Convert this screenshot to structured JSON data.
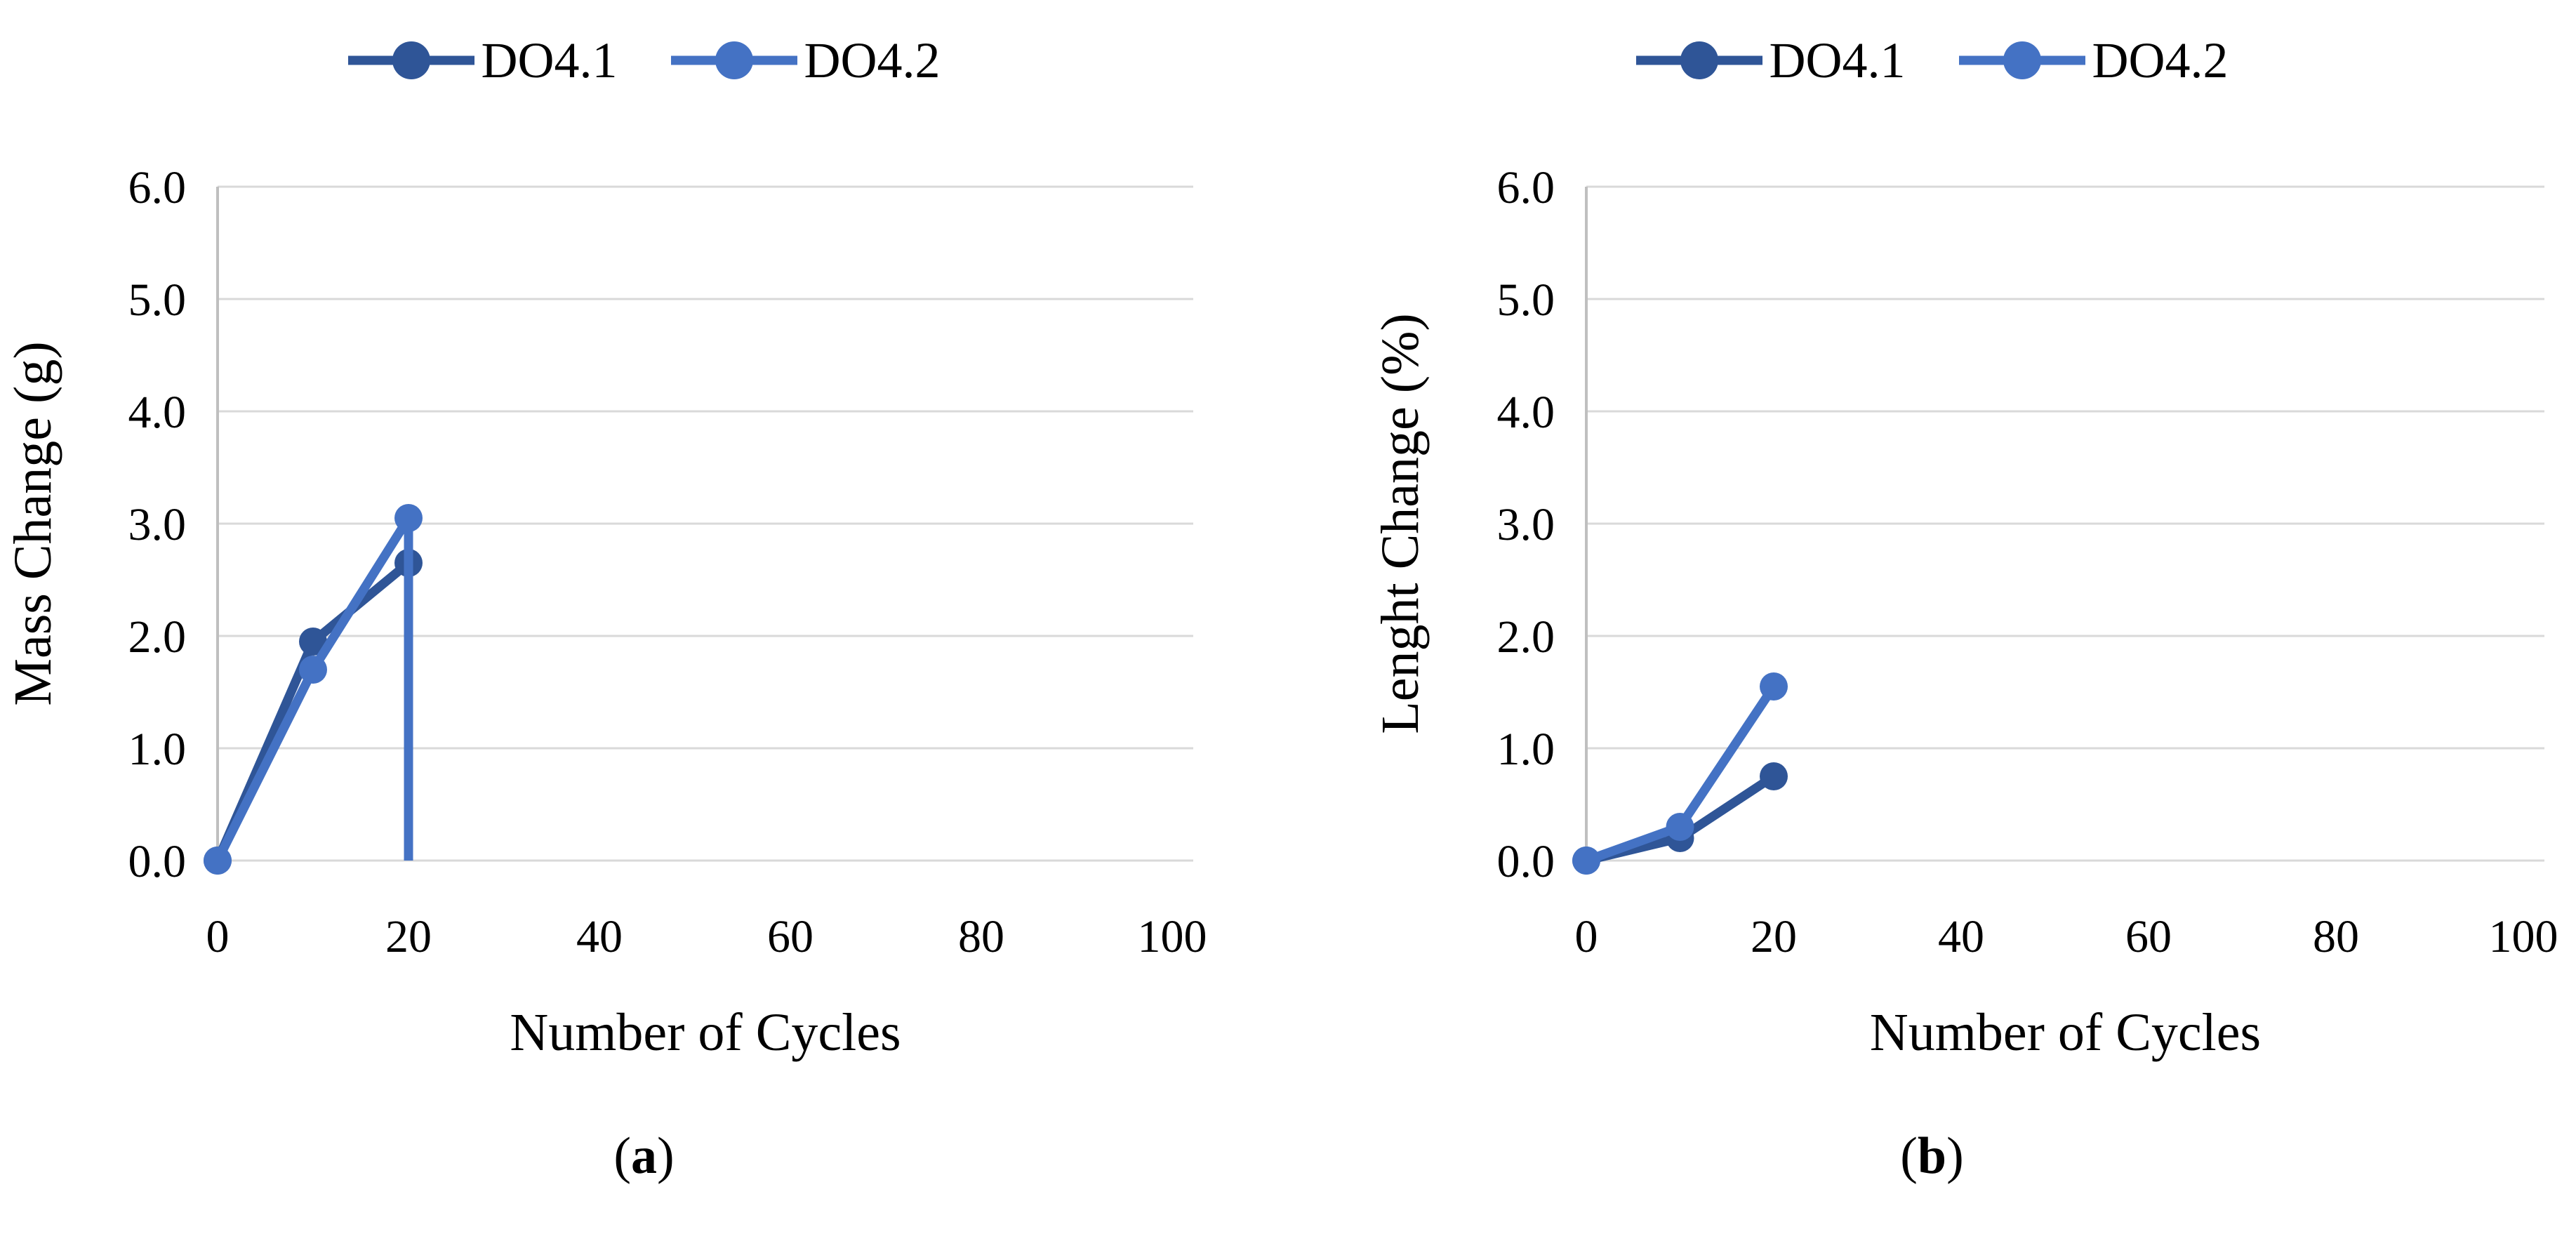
{
  "meta": {
    "background": "#ffffff",
    "gridline_color": "#D9D9D9",
    "axis_line_color": "#BFBFBF",
    "text_color": "#000000"
  },
  "captions": [
    {
      "prefix": "(",
      "letter": "a",
      "suffix": ")"
    },
    {
      "prefix": "(",
      "letter": "b",
      "suffix": ")"
    }
  ],
  "chart_data": [
    {
      "type": "line",
      "title": "",
      "xlabel": "Number of Cycles",
      "ylabel": "Mass Change (g)",
      "xlim": [
        0,
        100
      ],
      "ylim": [
        0,
        6
      ],
      "grid": "horizontal-only",
      "legend_position": "top",
      "xticks": [
        0,
        20,
        40,
        60,
        80,
        100
      ],
      "xtick_labels": [
        "0",
        "20",
        "40",
        "60",
        "80",
        "100"
      ],
      "ytick_values": [
        0,
        1,
        2,
        3,
        4,
        5,
        6
      ],
      "ytick_labels": [
        "0.0",
        "1.0",
        "2.0",
        "3.0",
        "4.0",
        "5.0",
        "6.0"
      ],
      "series": [
        {
          "name": "DO4.1",
          "color": "#2F5597",
          "x": [
            0,
            10,
            20,
            20
          ],
          "y": [
            0.0,
            1.95,
            2.65,
            0.0
          ],
          "drop_to_zero": true
        },
        {
          "name": "DO4.2",
          "color": "#4472C4",
          "x": [
            0,
            10,
            20,
            20
          ],
          "y": [
            0.0,
            1.7,
            3.05,
            0.0
          ],
          "drop_to_zero": true
        }
      ]
    },
    {
      "type": "line",
      "title": "",
      "xlabel": "Number of Cycles",
      "ylabel": "Lenght Change (%)",
      "xlim": [
        0,
        100
      ],
      "ylim": [
        0,
        6
      ],
      "grid": "horizontal-only",
      "legend_position": "top",
      "xticks": [
        0,
        20,
        40,
        60,
        80,
        100
      ],
      "xtick_labels": [
        "0",
        "20",
        "40",
        "60",
        "80",
        "100"
      ],
      "ytick_values": [
        0,
        1,
        2,
        3,
        4,
        5,
        6
      ],
      "ytick_labels": [
        "0.0",
        "1.0",
        "2.0",
        "3.0",
        "4.0",
        "5.0",
        "6.0"
      ],
      "series": [
        {
          "name": "DO4.1",
          "color": "#2F5597",
          "x": [
            0,
            10,
            20
          ],
          "y": [
            0.0,
            0.2,
            0.75
          ],
          "drop_to_zero": false
        },
        {
          "name": "DO4.2",
          "color": "#4472C4",
          "x": [
            0,
            10,
            20
          ],
          "y": [
            0.0,
            0.3,
            1.55
          ],
          "drop_to_zero": false
        }
      ]
    }
  ]
}
